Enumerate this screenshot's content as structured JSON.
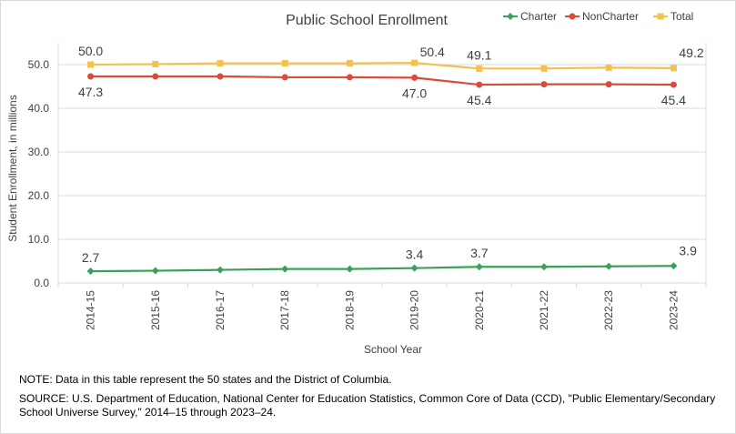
{
  "chart_data": {
    "type": "line",
    "title": "Public School Enrollment",
    "xlabel": "School Year",
    "ylabel": "Student Enrollment, in millions",
    "ylim": [
      0,
      55
    ],
    "yticks": [
      "0.0",
      "10.0",
      "20.0",
      "30.0",
      "40.0",
      "50.0"
    ],
    "categories": [
      "2014-15",
      "2015-16",
      "2016-17",
      "2017-18",
      "2018-19",
      "2019-20",
      "2020-21",
      "2021-22",
      "2022-23",
      "2023-24"
    ],
    "grid": "horizontal",
    "legend_position": "top-right",
    "series": [
      {
        "name": "Charter",
        "color": "#3aa05a",
        "marker": "diamond",
        "values": [
          2.7,
          2.8,
          3.0,
          3.2,
          3.2,
          3.4,
          3.7,
          3.7,
          3.8,
          3.9
        ],
        "labels": [
          {
            "index": 0,
            "text": "2.7"
          },
          {
            "index": 5,
            "text": "3.4"
          },
          {
            "index": 6,
            "text": "3.7"
          },
          {
            "index": 9,
            "text": "3.9"
          }
        ]
      },
      {
        "name": "NonCharter",
        "color": "#dc4a3c",
        "marker": "circle",
        "values": [
          47.3,
          47.3,
          47.3,
          47.1,
          47.1,
          47.0,
          45.4,
          45.5,
          45.5,
          45.4
        ],
        "labels": [
          {
            "index": 0,
            "text": "47.3"
          },
          {
            "index": 5,
            "text": "47.0"
          },
          {
            "index": 6,
            "text": "45.4"
          },
          {
            "index": 9,
            "text": "45.4"
          }
        ]
      },
      {
        "name": "Total",
        "color": "#f2c14e",
        "marker": "square",
        "values": [
          50.0,
          50.1,
          50.3,
          50.3,
          50.3,
          50.4,
          49.1,
          49.1,
          49.3,
          49.2
        ],
        "labels": [
          {
            "index": 0,
            "text": "50.0"
          },
          {
            "index": 5,
            "text": "50.4"
          },
          {
            "index": 6,
            "text": "49.1"
          },
          {
            "index": 9,
            "text": "49.2"
          }
        ]
      }
    ]
  },
  "notes": {
    "note": "NOTE: Data in this table represent the 50 states and the District of Columbia.",
    "source": "SOURCE: U.S. Department of Education, National Center for Education Statistics, Common Core of Data (CCD), \"Public Elementary/Secondary School Universe Survey,\" 2014–15 through 2023–24."
  }
}
